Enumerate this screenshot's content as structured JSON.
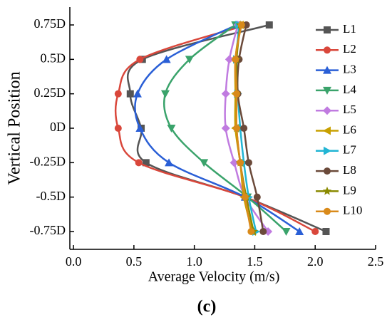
{
  "chart_data": {
    "type": "line",
    "orientation": "horizontal",
    "x_label": "Average Velocity (m/s)",
    "y_label": "Vertical Position",
    "caption": "(c)",
    "categories": [
      "0.75D",
      "0.5D",
      "0.25D",
      "0D",
      "-0.25D",
      "-0.5D",
      "-0.75D"
    ],
    "xlim": [
      -0.03,
      2.5
    ],
    "xticks": [
      {
        "value": 0,
        "label": "0.0"
      },
      0.5,
      {
        "value": 1,
        "label": "1.0"
      },
      1.5,
      {
        "value": 2,
        "label": "2.0"
      },
      2.5
    ],
    "legend": "right",
    "series": [
      {
        "name": "L1",
        "color": "#555555",
        "marker": "square",
        "values": [
          1.62,
          0.57,
          0.47,
          0.56,
          0.6,
          1.42,
          2.09
        ]
      },
      {
        "name": "L2",
        "color": "#d9473b",
        "marker": "circle",
        "values": [
          1.43,
          0.55,
          0.37,
          0.37,
          0.54,
          1.42,
          2.0
        ]
      },
      {
        "name": "L3",
        "color": "#2a5fd6",
        "marker": "triangle-up",
        "values": [
          1.35,
          0.77,
          0.53,
          0.55,
          0.79,
          1.42,
          1.87
        ]
      },
      {
        "name": "L4",
        "color": "#3aa36b",
        "marker": "triangle-down",
        "values": [
          1.34,
          0.96,
          0.76,
          0.81,
          1.08,
          1.44,
          1.76
        ]
      },
      {
        "name": "L5",
        "color": "#c07be0",
        "marker": "diamond",
        "values": [
          1.36,
          1.29,
          1.26,
          1.26,
          1.33,
          1.42,
          1.61
        ]
      },
      {
        "name": "L6",
        "color": "#c8a000",
        "marker": "triangle-left",
        "values": [
          1.38,
          1.34,
          1.34,
          1.34,
          1.38,
          1.41,
          1.48
        ]
      },
      {
        "name": "L7",
        "color": "#22b5d4",
        "marker": "triangle-right",
        "values": [
          1.37,
          1.35,
          1.36,
          1.38,
          1.41,
          1.45,
          1.51
        ]
      },
      {
        "name": "L8",
        "color": "#6b4a3a",
        "marker": "circle",
        "values": [
          1.43,
          1.37,
          1.36,
          1.41,
          1.45,
          1.52,
          1.57
        ]
      },
      {
        "name": "L9",
        "color": "#8a8a00",
        "marker": "star",
        "values": [
          1.38,
          1.35,
          1.35,
          1.35,
          1.38,
          1.43,
          1.49
        ]
      },
      {
        "name": "L10",
        "color": "#d98a1a",
        "marker": "circle",
        "values": [
          1.39,
          1.34,
          1.35,
          1.35,
          1.38,
          1.42,
          1.47
        ]
      }
    ]
  }
}
